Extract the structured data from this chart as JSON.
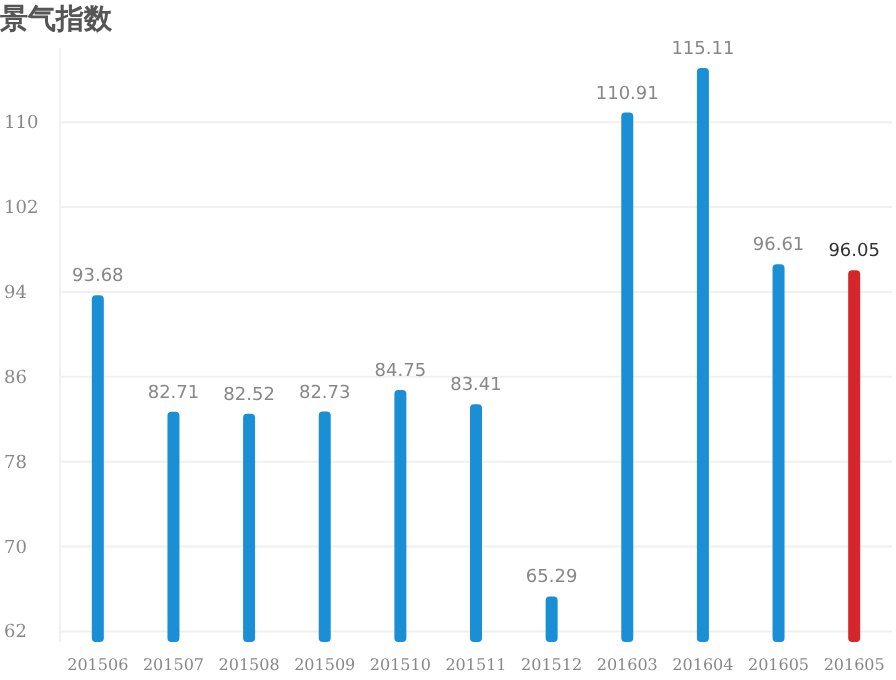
{
  "chart_data": {
    "type": "bar",
    "title": "景气指数",
    "categories": [
      "201506",
      "201507",
      "201508",
      "201509",
      "201510",
      "201511",
      "201512",
      "201603",
      "201604",
      "201605",
      "201605"
    ],
    "values": [
      93.68,
      82.71,
      82.52,
      82.73,
      84.75,
      83.41,
      65.29,
      110.91,
      115.11,
      96.61,
      96.05
    ],
    "colors": [
      "#1a8fd6",
      "#1a8fd6",
      "#1a8fd6",
      "#1a8fd6",
      "#1a8fd6",
      "#1a8fd6",
      "#1a8fd6",
      "#1a8fd6",
      "#1a8fd6",
      "#1a8fd6",
      "#d7262b"
    ],
    "ylim": [
      61,
      117
    ],
    "yticks": [
      62,
      70,
      78,
      86,
      94,
      102,
      110
    ],
    "grid": "y",
    "data_labels": true
  }
}
